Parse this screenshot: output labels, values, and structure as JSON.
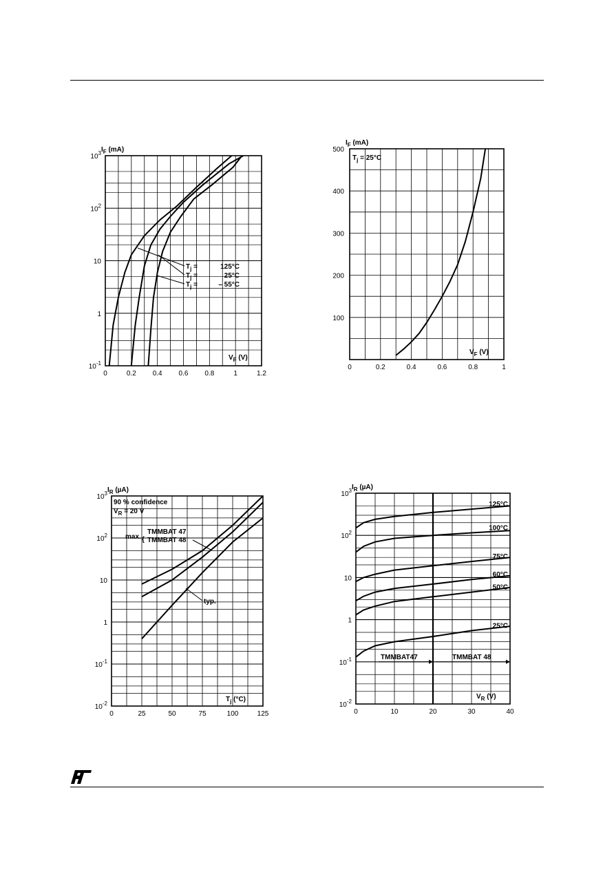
{
  "chart_data": [
    {
      "type": "line",
      "yscale": "log",
      "ylabel_main": "I",
      "ylabel_sub": "F",
      "ylabel_unit": "(mA)",
      "xlabel_main": "V",
      "xlabel_sub": "F",
      "xlabel_unit": "(V)",
      "xlim": [
        0,
        1.2
      ],
      "ylim": [
        0.1,
        1000
      ],
      "x_ticks": [
        "0",
        "0.2",
        "0.4",
        "0.6",
        "0.8",
        "1",
        "1.2"
      ],
      "y_ticks": [
        {
          "base": "10",
          "exp": "3",
          "value": 1000
        },
        {
          "base": "10",
          "exp": "2",
          "value": 100
        },
        {
          "base": "10",
          "exp": "",
          "value": 10
        },
        {
          "base": "1",
          "exp": "",
          "value": 1
        },
        {
          "base": "10",
          "exp": "-1",
          "value": 0.1
        }
      ],
      "legend": [
        {
          "sym": "T",
          "sub": "j",
          "eq": "=",
          "val": "125°C"
        },
        {
          "sym": "T",
          "sub": "j",
          "eq": "=",
          "val": "25°C"
        },
        {
          "sym": "T",
          "sub": "j",
          "eq": "=",
          "val": "– 55°C"
        }
      ],
      "series": [
        {
          "x": [
            0.03,
            0.06,
            0.1,
            0.15,
            0.2,
            0.3,
            0.42,
            0.55,
            0.7,
            0.85,
            0.97
          ],
          "y": [
            0.1,
            0.6,
            2,
            6,
            13,
            30,
            60,
            110,
            250,
            550,
            1000
          ]
        },
        {
          "x": [
            0.2,
            0.23,
            0.26,
            0.3,
            0.35,
            0.42,
            0.5,
            0.6,
            0.75,
            0.95,
            1.06
          ],
          "y": [
            0.1,
            0.6,
            2,
            8,
            20,
            40,
            70,
            130,
            280,
            700,
            1000
          ]
        },
        {
          "x": [
            0.33,
            0.35,
            0.37,
            0.4,
            0.44,
            0.5,
            0.58,
            0.68,
            0.82,
            0.98,
            1.05
          ],
          "y": [
            0.1,
            0.5,
            2,
            6,
            15,
            35,
            70,
            150,
            280,
            600,
            1000
          ]
        }
      ]
    },
    {
      "type": "line",
      "ylabel_main": "I",
      "ylabel_sub": "F",
      "ylabel_unit": "(mA)",
      "xlabel_main": "V",
      "xlabel_sub": "F",
      "xlabel_unit": "(V)",
      "annotation": {
        "sym": "T",
        "sub": "j",
        "rest": " = 25°C"
      },
      "xlim": [
        0,
        1
      ],
      "ylim": [
        0,
        500
      ],
      "x_ticks": [
        "0",
        "0.2",
        "0.4",
        "0.6",
        "0.8",
        "1"
      ],
      "y_ticks": [
        "500",
        "400",
        "300",
        "200",
        "100"
      ],
      "series": [
        {
          "x": [
            0.3,
            0.35,
            0.4,
            0.45,
            0.5,
            0.55,
            0.6,
            0.65,
            0.7,
            0.75,
            0.8,
            0.85,
            0.88
          ],
          "y": [
            10,
            25,
            42,
            62,
            88,
            118,
            150,
            185,
            225,
            280,
            350,
            430,
            500
          ]
        }
      ]
    },
    {
      "type": "line",
      "yscale": "log",
      "ylabel_main": "I",
      "ylabel_sub": "R",
      "ylabel_unit": "(µA)",
      "xlabel_main": "T",
      "xlabel_sub": "j",
      "xlabel_unit": "(°C)",
      "note1": "90 % confidence",
      "note2": {
        "sym": "V",
        "sub": "R",
        "rest": " = 20 V"
      },
      "max_label": "max.",
      "brace": "{",
      "name1": "TMMBAT 47",
      "name2": "TMMBAT 48",
      "typ_label": "typ.",
      "xlim": [
        0,
        125
      ],
      "ylim": [
        0.01,
        1000
      ],
      "x_ticks": [
        "0",
        "25",
        "50",
        "75",
        "100",
        "125"
      ],
      "y_ticks": [
        {
          "base": "10",
          "exp": "3",
          "value": 1000
        },
        {
          "base": "10",
          "exp": "2",
          "value": 100
        },
        {
          "base": "10",
          "exp": "",
          "value": 10
        },
        {
          "base": "1",
          "exp": "",
          "value": 1
        },
        {
          "base": "10",
          "exp": "-1",
          "value": 0.1
        },
        {
          "base": "10",
          "exp": "-2",
          "value": 0.01
        }
      ],
      "series": [
        {
          "x": [
            25,
            50,
            75,
            100,
            125
          ],
          "y": [
            8,
            18,
            50,
            200,
            1000
          ]
        },
        {
          "x": [
            25,
            50,
            75,
            100,
            125
          ],
          "y": [
            4,
            10,
            35,
            140,
            700
          ]
        },
        {
          "x": [
            25,
            50,
            75,
            100,
            125
          ],
          "y": [
            0.4,
            2.5,
            15,
            80,
            300
          ]
        }
      ]
    },
    {
      "type": "line",
      "yscale": "log",
      "ylabel_main": "I",
      "ylabel_sub": "R",
      "ylabel_unit": "(µA)",
      "xlabel_main": "V",
      "xlabel_sub": "R",
      "xlabel_unit": "(V)",
      "xlim": [
        0,
        40
      ],
      "ylim": [
        0.01,
        1000
      ],
      "x_ticks": [
        "0",
        "10",
        "20",
        "30",
        "40"
      ],
      "y_ticks": [
        {
          "base": "10",
          "exp": "3",
          "value": 1000
        },
        {
          "base": "10",
          "exp": "2",
          "value": 100
        },
        {
          "base": "10",
          "exp": "",
          "value": 10
        },
        {
          "base": "1",
          "exp": "",
          "value": 1
        },
        {
          "base": "10",
          "exp": "-1",
          "value": 0.1
        },
        {
          "base": "10",
          "exp": "-2",
          "value": 0.01
        }
      ],
      "series": [
        {
          "name": "125°C",
          "x": [
            0,
            2,
            5,
            10,
            20,
            30,
            40
          ],
          "y": [
            150,
            200,
            240,
            280,
            350,
            420,
            500
          ]
        },
        {
          "name": "100°C",
          "x": [
            0,
            2,
            5,
            10,
            20,
            30,
            40
          ],
          "y": [
            40,
            55,
            70,
            85,
            100,
            115,
            130
          ]
        },
        {
          "name": "75°C",
          "x": [
            0,
            2,
            5,
            10,
            20,
            30,
            40
          ],
          "y": [
            8,
            10,
            12,
            15,
            19,
            24,
            30
          ]
        },
        {
          "name": "60°C",
          "x": [
            0,
            2,
            5,
            10,
            20,
            30,
            40
          ],
          "y": [
            2.8,
            3.6,
            4.5,
            5.5,
            7,
            9,
            11
          ]
        },
        {
          "name": "50°C",
          "x": [
            0,
            2,
            5,
            10,
            20,
            30,
            40
          ],
          "y": [
            1.3,
            1.7,
            2.1,
            2.7,
            3.5,
            4.5,
            5.8
          ]
        },
        {
          "name": "25°C",
          "x": [
            0,
            2,
            5,
            10,
            20,
            30,
            40
          ],
          "y": [
            0.13,
            0.18,
            0.24,
            0.3,
            0.4,
            0.55,
            0.7
          ]
        }
      ],
      "marker1": "TMMBAT47",
      "marker2": "TMMBAT 48",
      "marker1_limit": 20,
      "marker2_limit": 40
    }
  ],
  "footer": {
    "logo": "ST"
  }
}
